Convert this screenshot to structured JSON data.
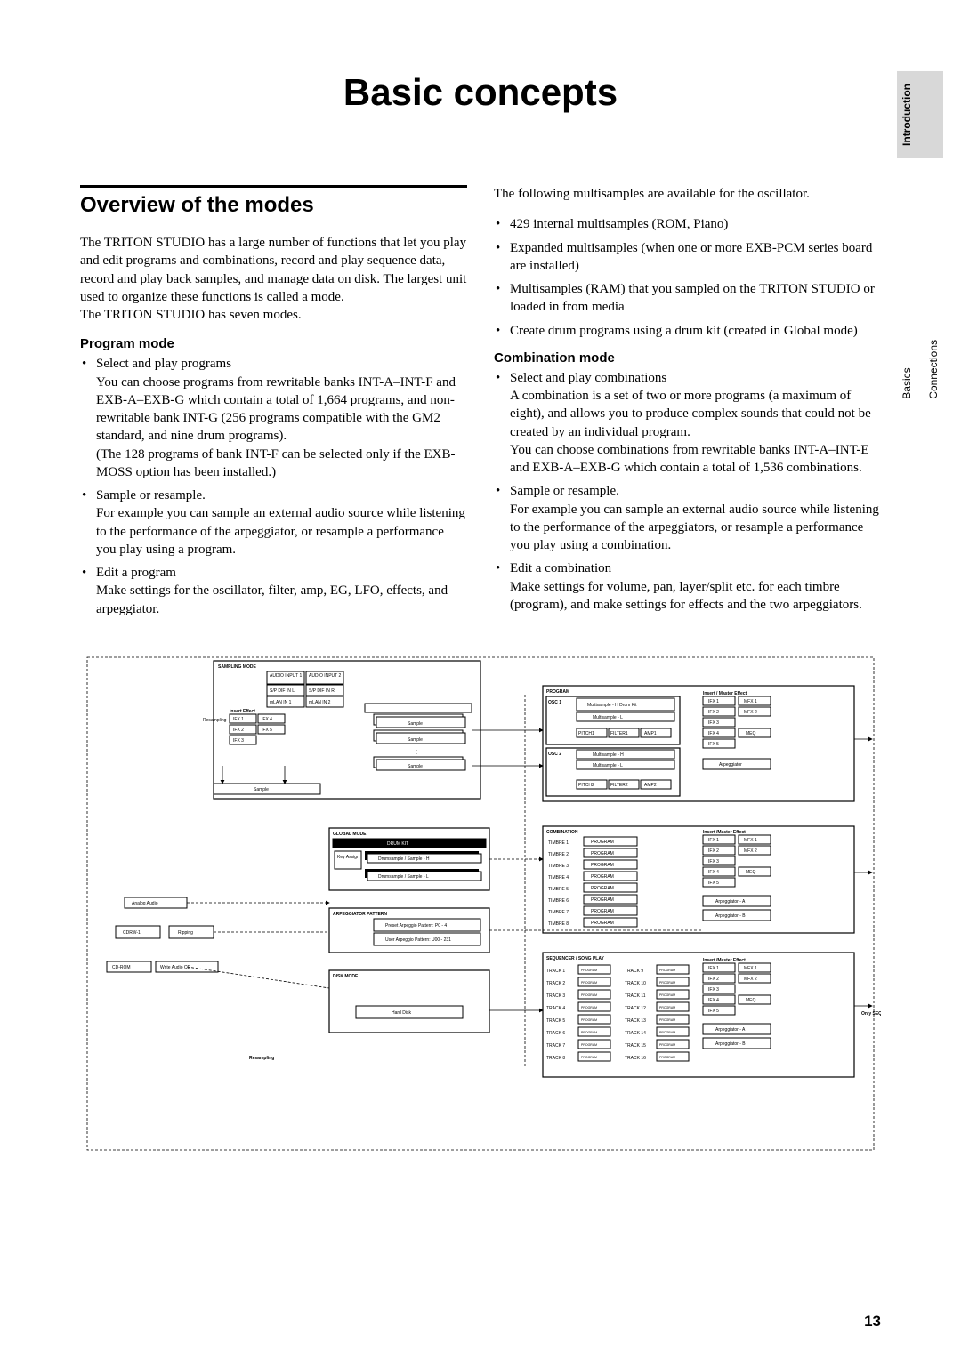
{
  "title": "Basic concepts",
  "section_heading": "Overview of the modes",
  "page_number": "13",
  "side_tabs": {
    "active": "Introduction",
    "pair": [
      "Basics",
      "Connections"
    ]
  },
  "left_col": {
    "intro_para": "The TRITON STUDIO has a large number of functions that let you play and edit programs and combinations, record and play sequence data, record and play back samples, and manage data on disk. The largest unit used to organize these functions is called a mode.\nThe TRITON STUDIO has seven modes.",
    "program_heading": "Program mode",
    "program_items": [
      "Select and play programs\nYou can choose programs from rewritable banks INT-A–INT-F and EXB-A–EXB-G which contain a total of 1,664 programs, and non-rewritable bank INT-G (256 programs compatible with the GM2 standard, and nine drum programs).\n(The 128 programs of bank INT-F can be selected only if the EXB-MOSS option has been installed.)",
      "Sample or resample.\nFor example you can sample an external audio source while listening to the performance of the arpeggiator, or resample a performance you play using a program.",
      "Edit a program\nMake settings for the oscillator, filter, amp, EG, LFO, effects, and arpeggiator."
    ]
  },
  "right_col": {
    "intro_para": "The following multisamples are available for the oscillator.",
    "multisample_items": [
      "429 internal multisamples (ROM, Piano)",
      "Expanded multisamples (when one or more EXB-PCM series board are installed)",
      "Multisamples (RAM) that you sampled on the TRITON STUDIO or loaded in from media",
      "Create drum programs using a drum kit (created in Global mode)"
    ],
    "combo_heading": "Combination mode",
    "combo_items": [
      "Select and play combinations\nA combination is a set of two or more programs (a maximum of eight), and allows you to produce complex sounds that could not be created by an individual program.\nYou can choose combinations from rewritable banks INT-A–INT-E and EXB-A–EXB-G which contain a total of 1,536 combinations.",
      "Sample or resample.\nFor example you can sample an external audio source while listening to the performance of the arpeggiators, or resample a performance you play using a combination.",
      "Edit a combination\nMake settings for volume, pan, layer/split etc. for each timbre (program), and make settings for effects and the two arpeggiators."
    ]
  },
  "diagram": {
    "sampling_mode": "SAMPLING MODE",
    "audio_inputs": [
      "AUDIO INPUT 1",
      "AUDIO INPUT 2",
      "S/P DIF IN L",
      "S/P DIF IN R",
      "mLAN IN 1",
      "mLAN IN 2"
    ],
    "insert_effect_l": "Insert Effect",
    "ifx_l": [
      "IFX 1",
      "IFX 2",
      "IFX 3",
      "IFX 4",
      "IFX 5"
    ],
    "resampling": "Resampling",
    "multisample": "Multisample",
    "sample_labels": [
      "Sample",
      "Sample",
      "Sample"
    ],
    "global_mode": "GLOBAL MODE",
    "drum_kit": "DRUM KIT",
    "key_assign": "Key Assign",
    "drumsample_h": "Drumsample / Sample - H",
    "drumsample_l": "Drumsample / Sample - L",
    "analog_audio": "Analog Audio",
    "arp_pattern": "ARPEGGIATOR PATTERN",
    "preset_arp": "Preset Arpeggio Pattern: P0 - 4",
    "user_arp": "User Arpeggio Pattern: U00 - 231",
    "cdrw": "CDRW-1",
    "ripping": "Ripping",
    "cdrom": "CD-ROM",
    "write_audio": "Write Audio CD",
    "disk_mode": "DISK MODE",
    "hard_disk": "Hard Disk",
    "resampling2": "Resampling",
    "program_frame": "PROGRAM",
    "osc1": "OSC 1",
    "osc2": "OSC 2",
    "osc1_boxes": [
      "Multisample - H Drum Kit",
      "Multisample - L"
    ],
    "osc2_boxes": [
      "Multisample - H",
      "Multisample - L"
    ],
    "pfa1": [
      "PITCH1",
      "FILTER1",
      "AMP1"
    ],
    "pfa2": [
      "PITCH2",
      "FILTER2",
      "AMP2"
    ],
    "ime": "Insert / Master Effect",
    "ifx_r": [
      "IFX 1",
      "IFX 2",
      "IFX 3",
      "IFX 4",
      "IFX 5"
    ],
    "mfx": [
      "MFX 1",
      "MFX 2"
    ],
    "meq": "MEQ",
    "arpeggiator": "Arpeggiator",
    "combination_frame": "COMBINATION",
    "timbre_labels": [
      "TIMBRE 1",
      "TIMBRE 2",
      "TIMBRE 3",
      "TIMBRE 4",
      "TIMBRE 5",
      "TIMBRE 6",
      "TIMBRE 7",
      "TIMBRE 8"
    ],
    "program_label": "PROGRAM",
    "ime2": "Insert /Master Effect",
    "arp_a": "Arpeggiator - A",
    "arp_b": "Arpeggiator - B",
    "seq_frame": "SEQUENCER / SONG PLAY",
    "track_labels": [
      "TRACK 1",
      "TRACK 2",
      "TRACK 3",
      "TRACK 4",
      "TRACK 5",
      "TRACK 6",
      "TRACK 7",
      "TRACK 8",
      "TRACK 9",
      "TRACK 10",
      "TRACK 11",
      "TRACK 12",
      "TRACK 13",
      "TRACK 14",
      "TRACK 15",
      "TRACK 16"
    ],
    "only_seq": "Only SEQ"
  }
}
